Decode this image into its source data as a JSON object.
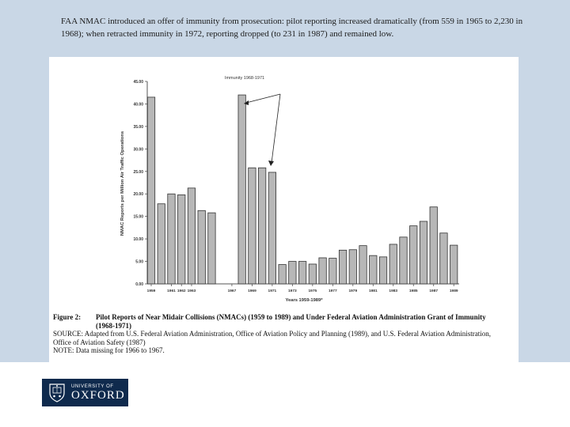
{
  "slide": {
    "caption": "FAA NMAC introduced an offer of immunity from prosecution: pilot reporting increased dramatically (from 559 in 1965 to 2,230 in 1968); when retracted immunity in 1972, reporting dropped (to 231 in 1987) and remained low."
  },
  "figure": {
    "label": "Figure 2:",
    "title": "Pilot Reports of Near Midair Collisions (NMACs) (1959 to 1989) and Under Federal Aviation Administration Grant of Immunity",
    "title_cont": "(1968-1971)",
    "source_1": "SOURCE: Adapted from U.S. Federal Aviation Administration, Office of Aviation Policy and Planning (1989), and U.S. Federal Aviation Administration,",
    "source_2": "Office of Aviation Safety (1987)",
    "note": "NOTE: Data missing for 1966 to 1967."
  },
  "logo": {
    "top_text": "UNIVERSITY OF",
    "main_text": "OXFORD",
    "color": "#0f2a4d"
  },
  "chart_data": {
    "type": "bar",
    "ylabel": "NMAC Reports per Million Air Traffic Operations",
    "xlabel": "Years 1959-1989*",
    "annotation": "Immunity 1968-1971",
    "ylim": [
      0,
      45
    ],
    "yticks": [
      "0.00",
      "5.00",
      "10.00",
      "15.00",
      "20.00",
      "25.00",
      "30.00",
      "35.00",
      "40.00",
      "45.00"
    ],
    "x_tick_labels": [
      "1959",
      "1961",
      "1962",
      "1963",
      "1967",
      "1969",
      "1971",
      "1973",
      "1975",
      "1977",
      "1979",
      "1981",
      "1983",
      "1985",
      "1987",
      "1989"
    ],
    "categories": [
      1959,
      1960,
      1961,
      1962,
      1963,
      1964,
      1965,
      1966,
      1967,
      1968,
      1969,
      1970,
      1971,
      1972,
      1973,
      1974,
      1975,
      1976,
      1977,
      1978,
      1979,
      1980,
      1981,
      1982,
      1983,
      1984,
      1985,
      1986,
      1987,
      1988,
      1989
    ],
    "values": [
      41.5,
      17.8,
      20.0,
      19.8,
      21.3,
      16.3,
      15.8,
      null,
      null,
      42.0,
      25.8,
      25.8,
      24.8,
      4.3,
      5.0,
      5.0,
      4.4,
      5.8,
      5.7,
      7.5,
      7.6,
      8.5,
      6.3,
      6.0,
      8.8,
      10.4,
      12.9,
      13.9,
      17.1,
      11.3,
      8.6
    ],
    "bar_color": "#b7b7b7",
    "grid": false
  }
}
